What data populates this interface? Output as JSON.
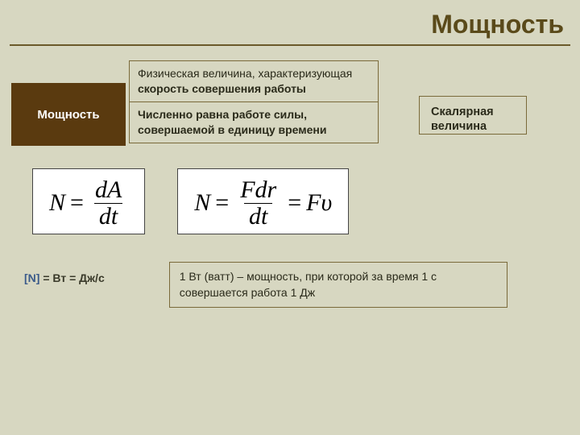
{
  "title": "Мощность",
  "term_label": "Мощность",
  "definition1_pre": "Физическая величина, характеризующая ",
  "definition1_bold": "скорость совершения работы",
  "definition2": "Численно равна работе силы, совершаемой в единицу времени",
  "scalar": "Скалярная величина",
  "formula1": {
    "lhs": "N",
    "num": "dA",
    "den": "dt"
  },
  "formula2": {
    "lhs": "N",
    "num": "Fdr",
    "den": "dt",
    "rhs": "Fυ"
  },
  "unit_symbol": "N",
  "unit_eq": " = Вт = Дж/с",
  "explanation": "1 Вт (ватт) – мощность, при которой за время 1 с совершается работа 1 Дж",
  "colors": {
    "background": "#d7d7c1",
    "title": "#5a4a1a",
    "term_bg": "#5a3a0f",
    "term_fg": "#ffffff",
    "border": "#7a6a3a",
    "text": "#2a2a1a",
    "formula_bg": "#ffffff",
    "unit_accent": "#3a5a8a"
  },
  "typography": {
    "title_size_pt": 32,
    "body_size_pt": 14,
    "formula_size_pt": 30,
    "formula_family": "Times New Roman",
    "body_family": "Verdana"
  }
}
